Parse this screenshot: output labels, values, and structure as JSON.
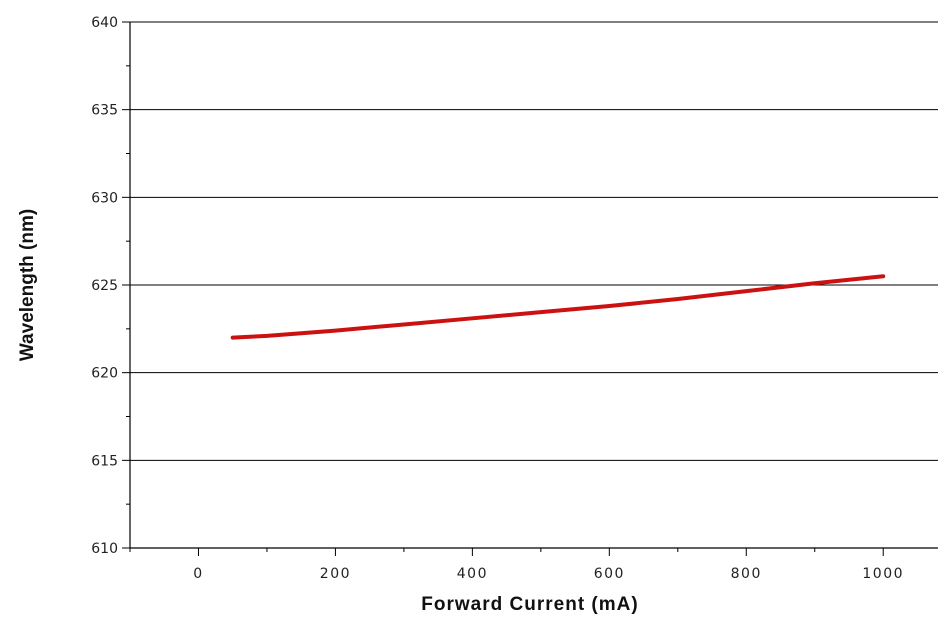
{
  "chart_data": {
    "type": "line",
    "xlabel": "Forward Current (mA)",
    "ylabel": "Wavelength (nm)",
    "xlim": [
      -100,
      1080
    ],
    "ylim": [
      610,
      640
    ],
    "x_ticks": [
      0,
      200,
      400,
      600,
      800,
      1000
    ],
    "y_ticks": [
      610,
      615,
      620,
      625,
      630,
      635,
      640
    ],
    "x_tick_labels": [
      "0",
      "200",
      "400",
      "600",
      "800",
      "1000"
    ],
    "y_tick_labels": [
      "610",
      "615",
      "620",
      "625",
      "630",
      "635",
      "640"
    ],
    "grid": "horizontal",
    "series": [
      {
        "color": "#cc1111",
        "x": [
          50,
          100,
          200,
          300,
          400,
          500,
          600,
          700,
          800,
          900,
          1000
        ],
        "y": [
          622.0,
          622.1,
          622.4,
          622.75,
          623.1,
          623.45,
          623.8,
          624.2,
          624.65,
          625.1,
          625.5
        ]
      }
    ]
  }
}
